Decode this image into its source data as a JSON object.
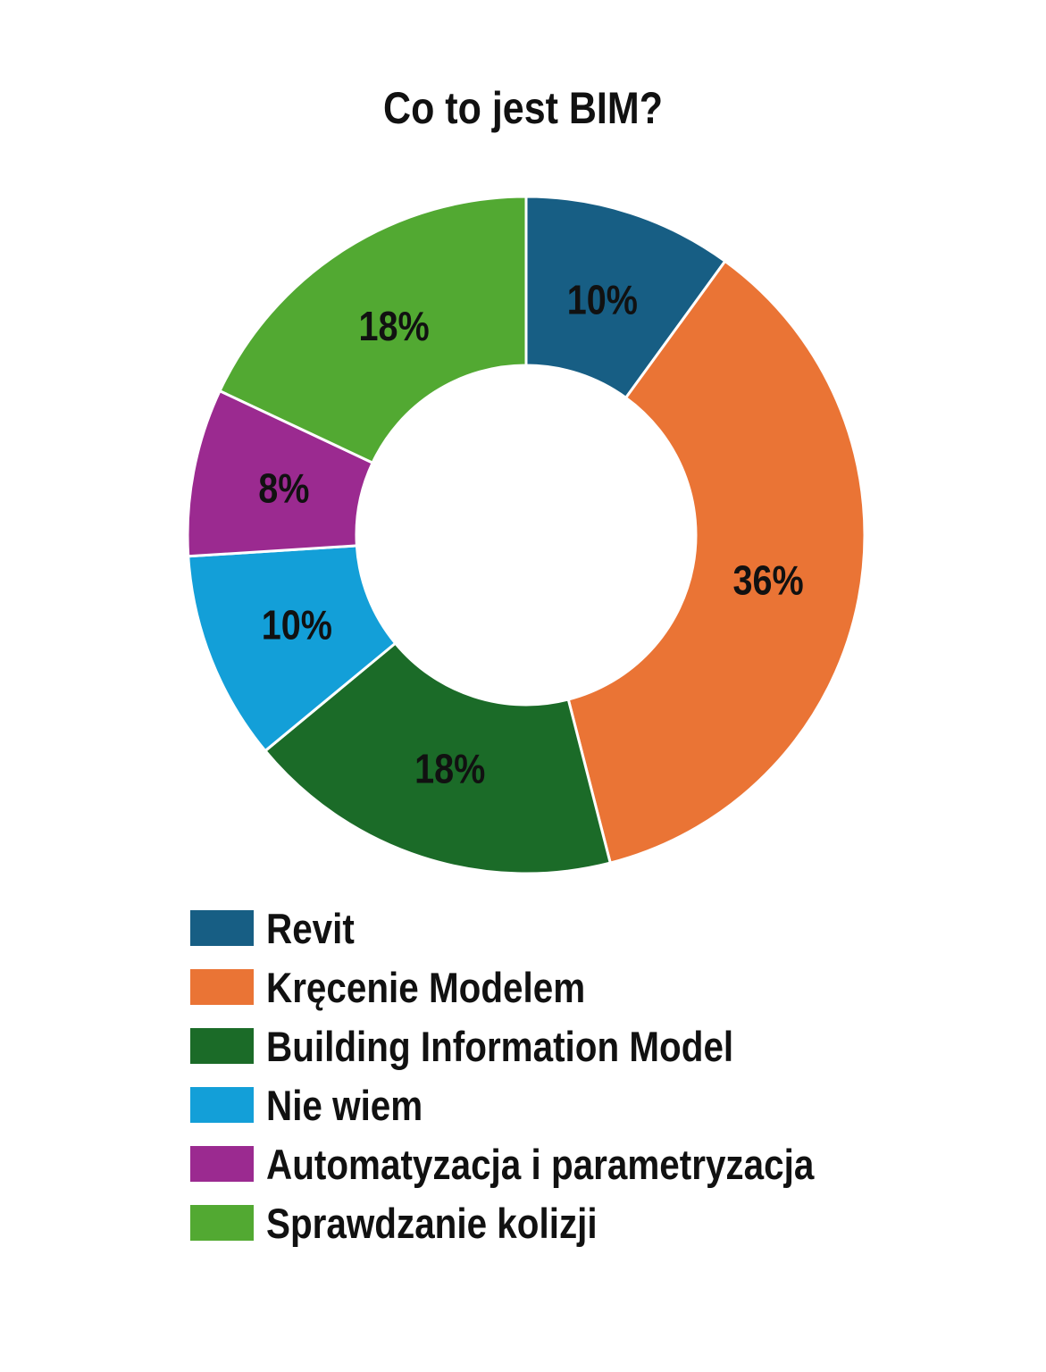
{
  "chart_data": {
    "type": "pie",
    "variant": "donut",
    "title": "Co to jest BIM?",
    "legend_position": "bottom",
    "start_angle_deg": 0,
    "direction": "clockwise",
    "slices": [
      {
        "name": "Revit",
        "value": 10,
        "label": "10%",
        "color": "#175E84"
      },
      {
        "name": "Kręcenie Modelem",
        "value": 36,
        "label": "36%",
        "color": "#EA7435"
      },
      {
        "name": "Building Information Model",
        "value": 18,
        "label": "18%",
        "color": "#1B6B28"
      },
      {
        "name": "Nie wiem",
        "value": 10,
        "label": "10%",
        "color": "#139FD8"
      },
      {
        "name": "Automatyzacja i parametryzacja",
        "value": 8,
        "label": "8%",
        "color": "#9B2A90"
      },
      {
        "name": "Sprawdzanie kolizji",
        "value": 18,
        "label": "18%",
        "color": "#52A932"
      }
    ]
  }
}
